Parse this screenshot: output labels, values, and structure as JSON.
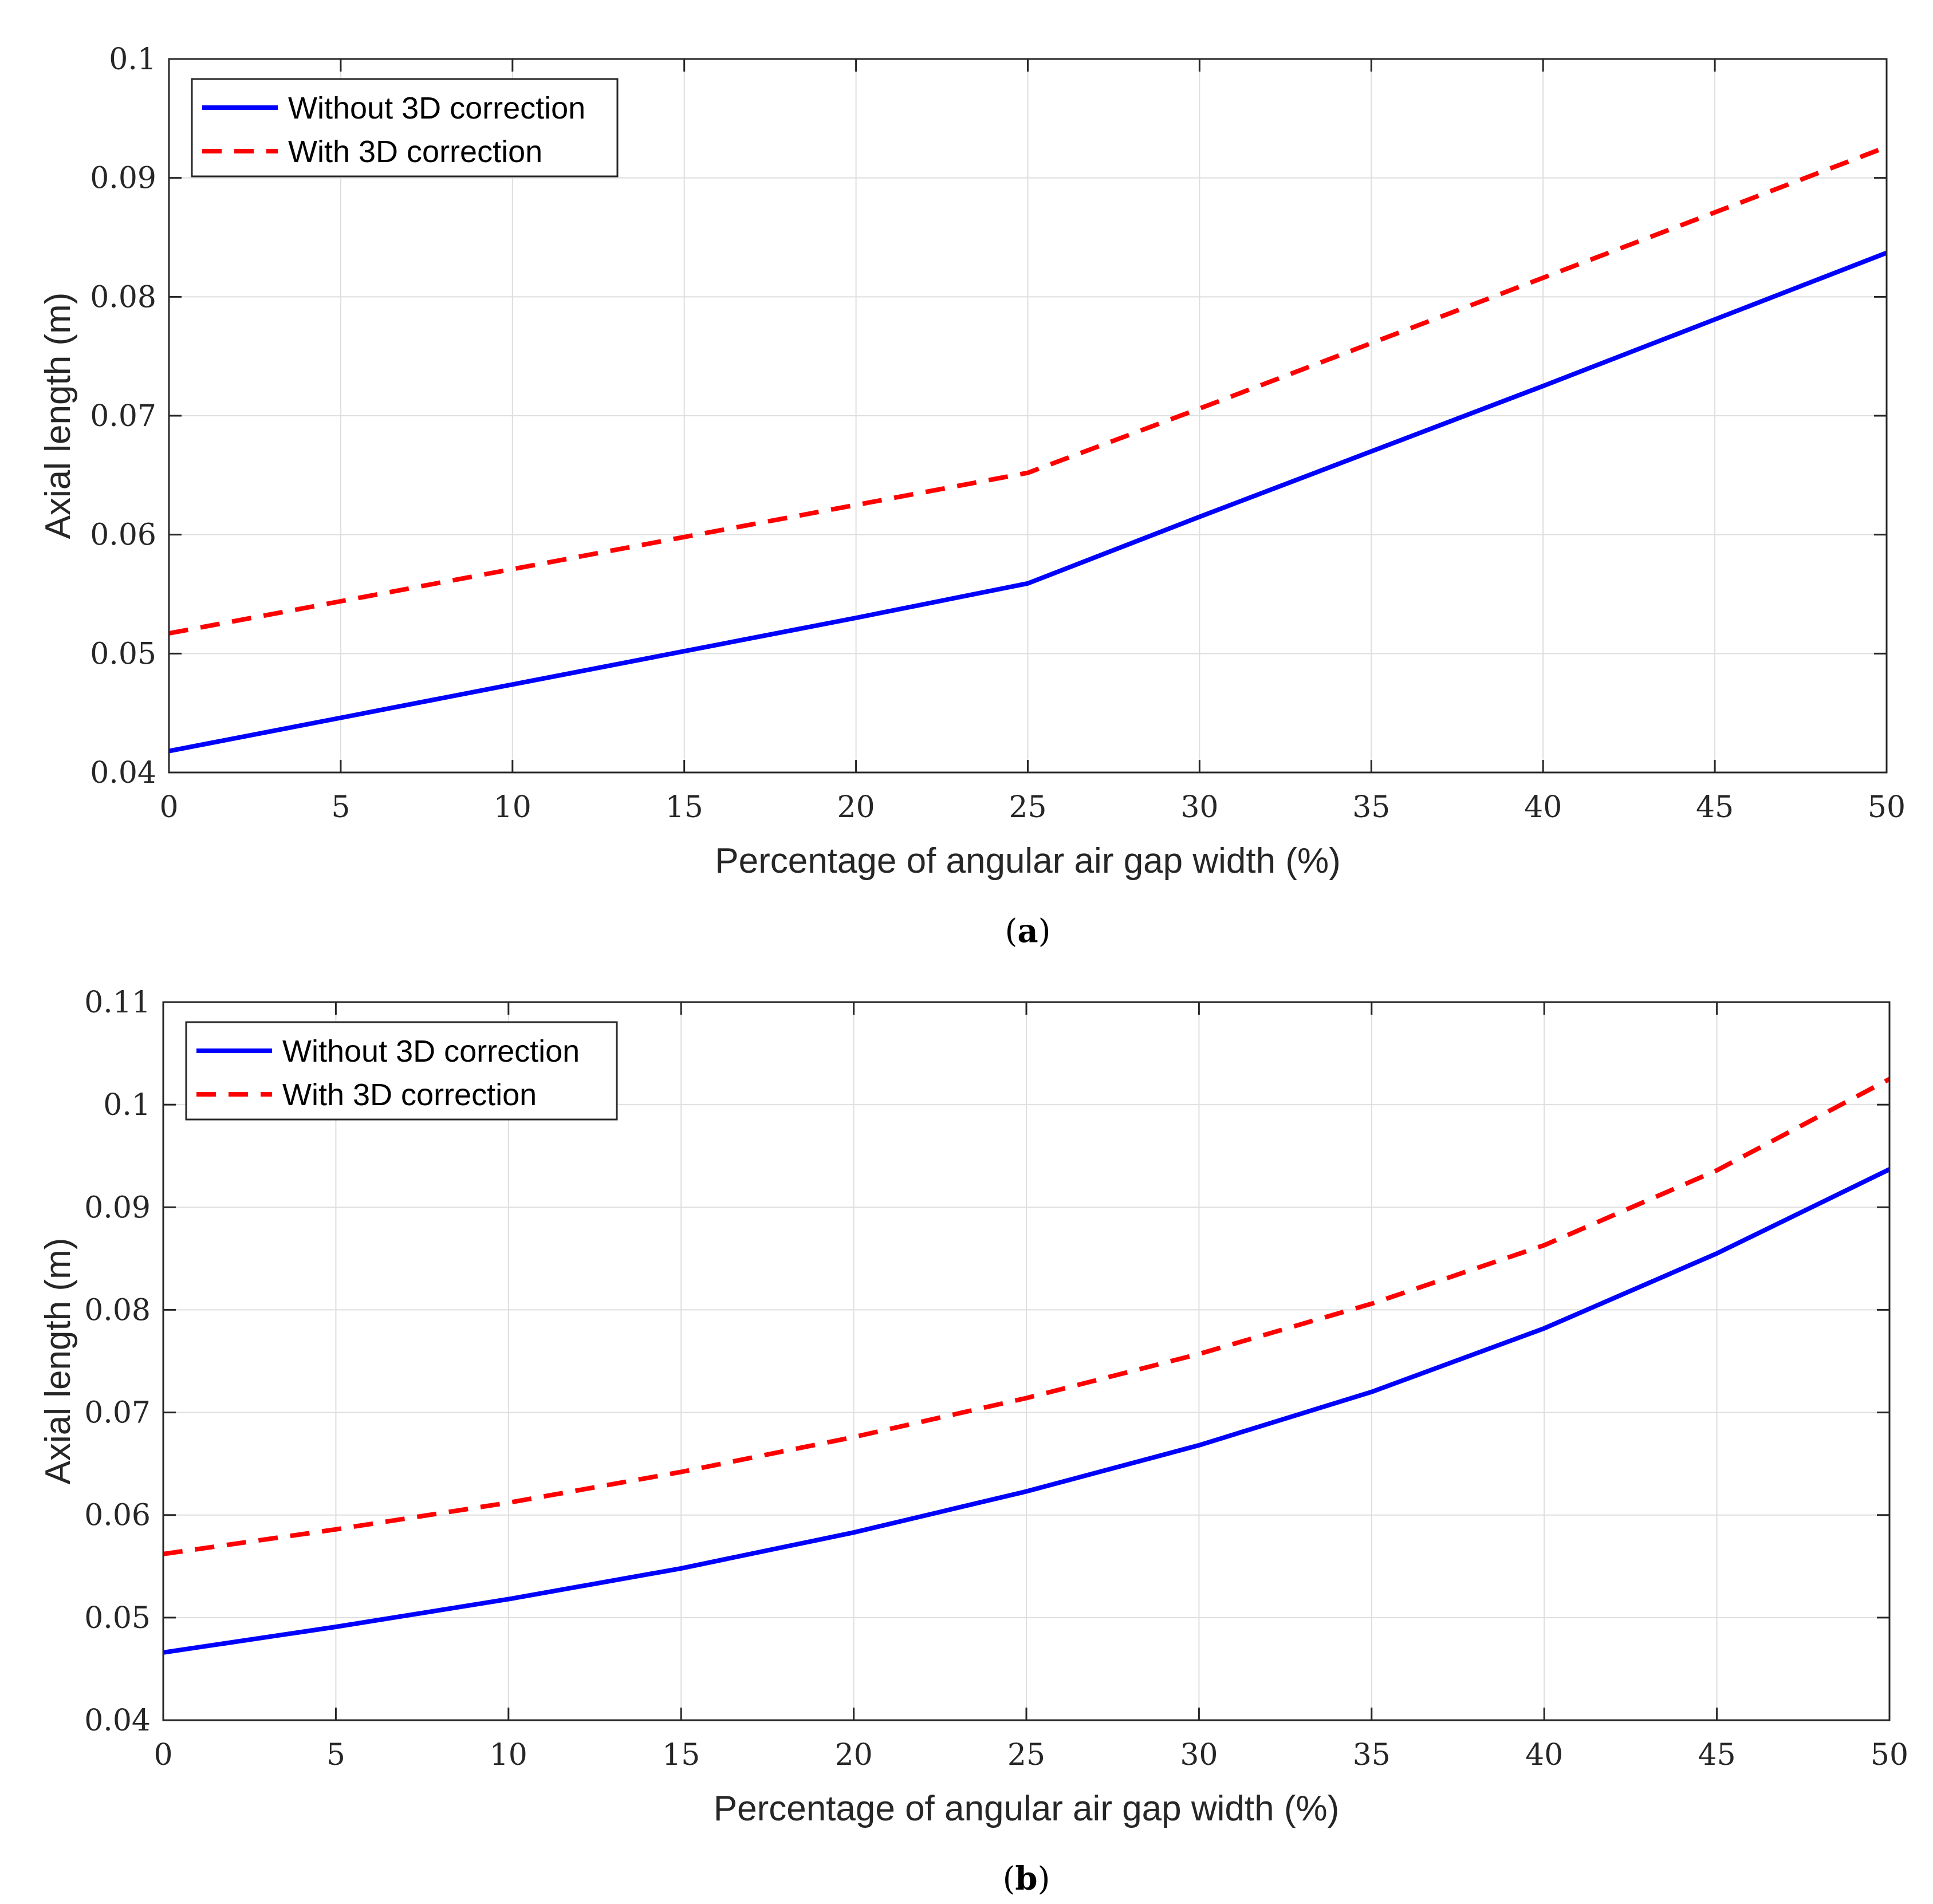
{
  "chart_data": [
    {
      "type": "line",
      "caption_open": "(",
      "caption_letter": "a",
      "caption_close": ")",
      "title": "",
      "xlabel": "Percentage of angular air gap width (%)",
      "ylabel": "Axial length (m)",
      "xlim": [
        0,
        50
      ],
      "ylim": [
        0.04,
        0.1
      ],
      "xticks": [
        0,
        5,
        10,
        15,
        20,
        25,
        30,
        35,
        40,
        45,
        50
      ],
      "xtick_labels": [
        "0",
        "5",
        "10",
        "15",
        "20",
        "25",
        "30",
        "35",
        "40",
        "45",
        "50"
      ],
      "yticks": [
        0.04,
        0.05,
        0.06,
        0.07,
        0.08,
        0.09,
        0.1
      ],
      "ytick_labels": [
        "0.04",
        "0.05",
        "0.06",
        "0.07",
        "0.08",
        "0.09",
        "0.1"
      ],
      "grid": true,
      "legend_position": "top-left",
      "series": [
        {
          "name": "Without 3D correction",
          "style": "solid",
          "color": "#0000ff",
          "x": [
            0,
            5,
            10,
            15,
            20,
            25,
            30,
            35,
            40,
            45,
            50
          ],
          "y": [
            0.0418,
            0.0446,
            0.0474,
            0.0502,
            0.053,
            0.0559,
            0.0615,
            0.067,
            0.0725,
            0.0781,
            0.0837
          ]
        },
        {
          "name": "With 3D correction",
          "style": "dashed",
          "color": "#ff0000",
          "x": [
            0,
            5,
            10,
            15,
            20,
            25,
            30,
            35,
            40,
            45,
            50
          ],
          "y": [
            0.0517,
            0.0544,
            0.0571,
            0.0598,
            0.0625,
            0.0652,
            0.0706,
            0.0761,
            0.0816,
            0.0871,
            0.0926
          ]
        }
      ]
    },
    {
      "type": "line",
      "caption_open": "(",
      "caption_letter": "b",
      "caption_close": ")",
      "title": "",
      "xlabel": "Percentage of angular air gap width (%)",
      "ylabel": "Axial length (m)",
      "xlim": [
        0,
        50
      ],
      "ylim": [
        0.04,
        0.11
      ],
      "xticks": [
        0,
        5,
        10,
        15,
        20,
        25,
        30,
        35,
        40,
        45,
        50
      ],
      "xtick_labels": [
        "0",
        "5",
        "10",
        "15",
        "20",
        "25",
        "30",
        "35",
        "40",
        "45",
        "50"
      ],
      "yticks": [
        0.04,
        0.05,
        0.06,
        0.07,
        0.08,
        0.09,
        0.1,
        0.11
      ],
      "ytick_labels": [
        "0.04",
        "0.05",
        "0.06",
        "0.07",
        "0.08",
        "0.09",
        "0.1",
        "0.11"
      ],
      "grid": true,
      "legend_position": "top-left",
      "series": [
        {
          "name": "Without 3D correction",
          "style": "solid",
          "color": "#0000ff",
          "x": [
            0,
            5,
            10,
            15,
            20,
            25,
            30,
            35,
            40,
            45,
            50
          ],
          "y": [
            0.0466,
            0.0491,
            0.0518,
            0.0548,
            0.0583,
            0.0623,
            0.0668,
            0.072,
            0.0782,
            0.0855,
            0.0937
          ]
        },
        {
          "name": "With 3D correction",
          "style": "dashed",
          "color": "#ff0000",
          "x": [
            0,
            5,
            10,
            15,
            20,
            25,
            30,
            35,
            40,
            45,
            50
          ],
          "y": [
            0.0562,
            0.0586,
            0.0612,
            0.0642,
            0.0676,
            0.0714,
            0.0757,
            0.0806,
            0.0863,
            0.0936,
            0.1025
          ]
        }
      ]
    }
  ]
}
